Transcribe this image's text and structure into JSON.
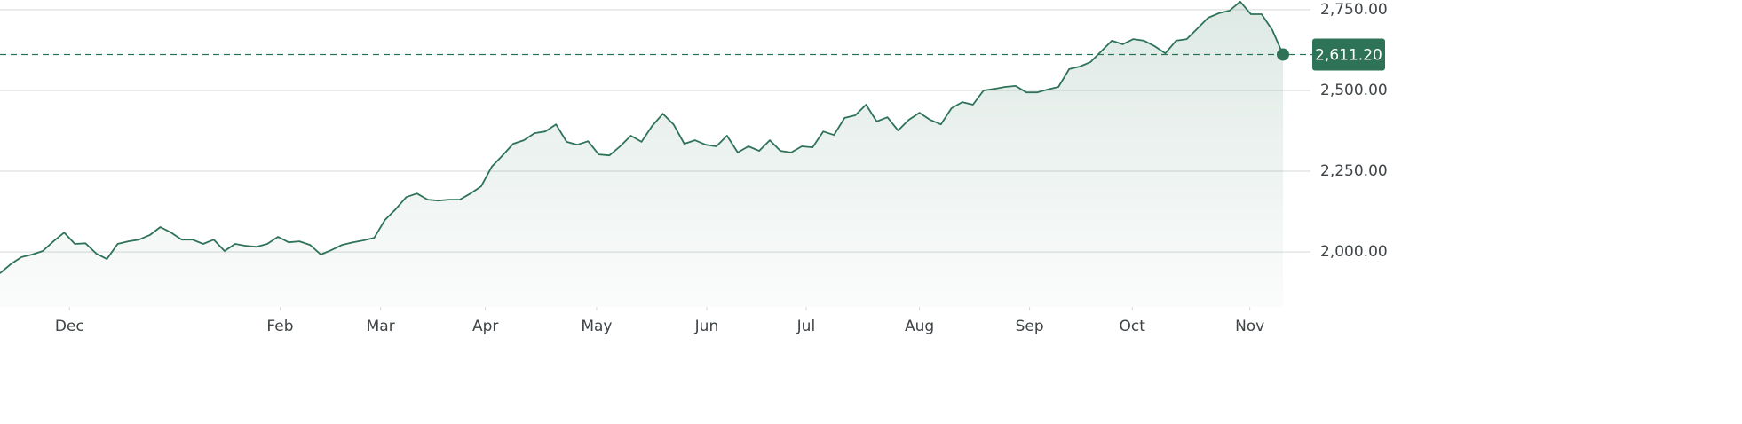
{
  "chart_data": {
    "type": "area",
    "color": "#2e7358",
    "values": [
      1934,
      1962,
      1984,
      1992,
      2003,
      2033,
      2060,
      2025,
      2027,
      1995,
      1978,
      2025,
      2033,
      2038,
      2052,
      2077,
      2060,
      2038,
      2038,
      2025,
      2038,
      2003,
      2025,
      2019,
      2016,
      2025,
      2047,
      2030,
      2033,
      2022,
      1992,
      2006,
      2022,
      2030,
      2036,
      2044,
      2099,
      2132,
      2170,
      2181,
      2162,
      2159,
      2162,
      2162,
      2181,
      2203,
      2264,
      2299,
      2335,
      2346,
      2368,
      2373,
      2395,
      2341,
      2332,
      2343,
      2302,
      2299,
      2327,
      2360,
      2341,
      2390,
      2428,
      2395,
      2335,
      2346,
      2332,
      2327,
      2360,
      2308,
      2327,
      2313,
      2346,
      2313,
      2308,
      2327,
      2324,
      2373,
      2362,
      2415,
      2423,
      2456,
      2404,
      2417,
      2376,
      2409,
      2431,
      2409,
      2395,
      2445,
      2464,
      2456,
      2500,
      2505,
      2511,
      2514,
      2494,
      2494,
      2503,
      2511,
      2566,
      2574,
      2588,
      2621,
      2654,
      2643,
      2659,
      2654,
      2637,
      2615,
      2654,
      2659,
      2692,
      2725,
      2739,
      2747,
      2775,
      2736,
      2736,
      2687,
      2611.2
    ],
    "xlim": [
      0,
      120
    ],
    "xticks": [
      {
        "value": 6.5,
        "label": "Dec"
      },
      {
        "value": 26.2,
        "label": "Feb"
      },
      {
        "value": 35.6,
        "label": "Mar"
      },
      {
        "value": 45.4,
        "label": "Apr"
      },
      {
        "value": 55.8,
        "label": "May"
      },
      {
        "value": 66.1,
        "label": "Jun"
      },
      {
        "value": 75.4,
        "label": "Jul"
      },
      {
        "value": 86.0,
        "label": "Aug"
      },
      {
        "value": 96.3,
        "label": "Sep"
      },
      {
        "value": 105.9,
        "label": "Oct"
      },
      {
        "value": 116.9,
        "label": "Nov"
      }
    ],
    "ylim": [
      1830,
      2780
    ],
    "yticks": [
      {
        "value": 2000,
        "label": "2,000.00"
      },
      {
        "value": 2250,
        "label": "2,250.00"
      },
      {
        "value": 2500,
        "label": "2,500.00"
      },
      {
        "value": 2750,
        "label": "2,750.00"
      }
    ],
    "grid": true,
    "reference_line": {
      "value": 2611.2,
      "label": "2,611.20"
    }
  }
}
